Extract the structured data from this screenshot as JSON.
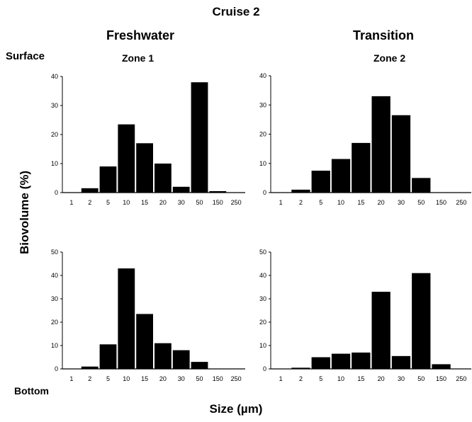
{
  "title": "Cruise 2",
  "column_headers": [
    "Freshwater",
    "Transition"
  ],
  "zone_labels": [
    "Zone 1",
    "Zone 2"
  ],
  "row_labels": [
    "Surface",
    "Bottom"
  ],
  "ylabel": "Biovolume (%)",
  "xlabel": "Size (µm)",
  "bar_color": "#000000",
  "chart_data": [
    {
      "type": "bar",
      "panel": "Freshwater Surface",
      "categories": [
        "1",
        "2",
        "5",
        "10",
        "15",
        "20",
        "30",
        "50",
        "150",
        "250"
      ],
      "values": [
        0,
        1.5,
        9,
        23.5,
        17,
        10,
        2,
        38,
        0.5,
        0
      ],
      "ylim": [
        0,
        40
      ],
      "yticks": [
        0,
        10,
        20,
        30,
        40
      ]
    },
    {
      "type": "bar",
      "panel": "Transition Surface",
      "categories": [
        "1",
        "2",
        "5",
        "10",
        "15",
        "20",
        "30",
        "50",
        "150",
        "250"
      ],
      "values": [
        0,
        1,
        7.5,
        11.5,
        17,
        33,
        26.5,
        5,
        0,
        0
      ],
      "ylim": [
        0,
        40
      ],
      "yticks": [
        0,
        10,
        20,
        30,
        40
      ]
    },
    {
      "type": "bar",
      "panel": "Freshwater Bottom",
      "categories": [
        "1",
        "2",
        "5",
        "10",
        "15",
        "20",
        "30",
        "50",
        "150",
        "250"
      ],
      "values": [
        0,
        1,
        10.5,
        43,
        23.5,
        11,
        8,
        3,
        0,
        0
      ],
      "ylim": [
        0,
        50
      ],
      "yticks": [
        0,
        10,
        20,
        30,
        40,
        50
      ]
    },
    {
      "type": "bar",
      "panel": "Transition Bottom",
      "categories": [
        "1",
        "2",
        "5",
        "10",
        "15",
        "20",
        "30",
        "50",
        "150",
        "250"
      ],
      "values": [
        0,
        0.5,
        5,
        6.5,
        7,
        33,
        5.5,
        41,
        2,
        0
      ],
      "ylim": [
        0,
        50
      ],
      "yticks": [
        0,
        10,
        20,
        30,
        40,
        50
      ]
    }
  ]
}
